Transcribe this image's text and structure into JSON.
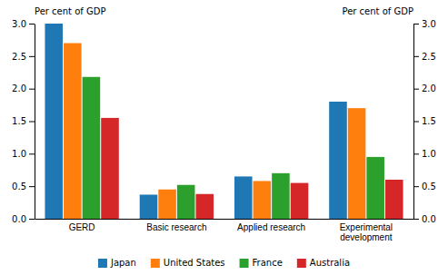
{
  "chart_data": {
    "type": "bar",
    "categories": [
      "GERD",
      "Basic research",
      "Applied research",
      "Experimental\ndevelopment"
    ],
    "series": [
      {
        "name": "Japan",
        "values": [
          3.0,
          0.37,
          0.65,
          1.8
        ]
      },
      {
        "name": "United States",
        "values": [
          2.7,
          0.45,
          0.58,
          1.7
        ]
      },
      {
        "name": "France",
        "values": [
          2.18,
          0.52,
          0.7,
          0.95
        ]
      },
      {
        "name": "Australia",
        "values": [
          1.55,
          0.38,
          0.55,
          0.6
        ]
      }
    ],
    "ylabel": "Per cent of GDP",
    "y2label": "Per cent of GDP",
    "ylim": [
      0.0,
      3.0
    ],
    "yticks": [
      {
        "value": 0.0,
        "label": "0.0"
      },
      0.5,
      {
        "value": 1.0,
        "label": "1.0"
      },
      1.5,
      {
        "value": 2.0,
        "label": "2.0"
      },
      2.5,
      {
        "value": 3.0,
        "label": "3.0"
      }
    ],
    "y2lim": [
      0.0,
      3.0
    ],
    "y2ticks": [
      {
        "value": 0.0,
        "label": "0.0"
      },
      0.5,
      {
        "value": 1.0,
        "label": "1.0"
      },
      1.5,
      {
        "value": 2.0,
        "label": "2.0"
      },
      2.5,
      {
        "value": 3.0,
        "label": "3.0"
      }
    ],
    "grid": false,
    "legend": "bottom"
  }
}
